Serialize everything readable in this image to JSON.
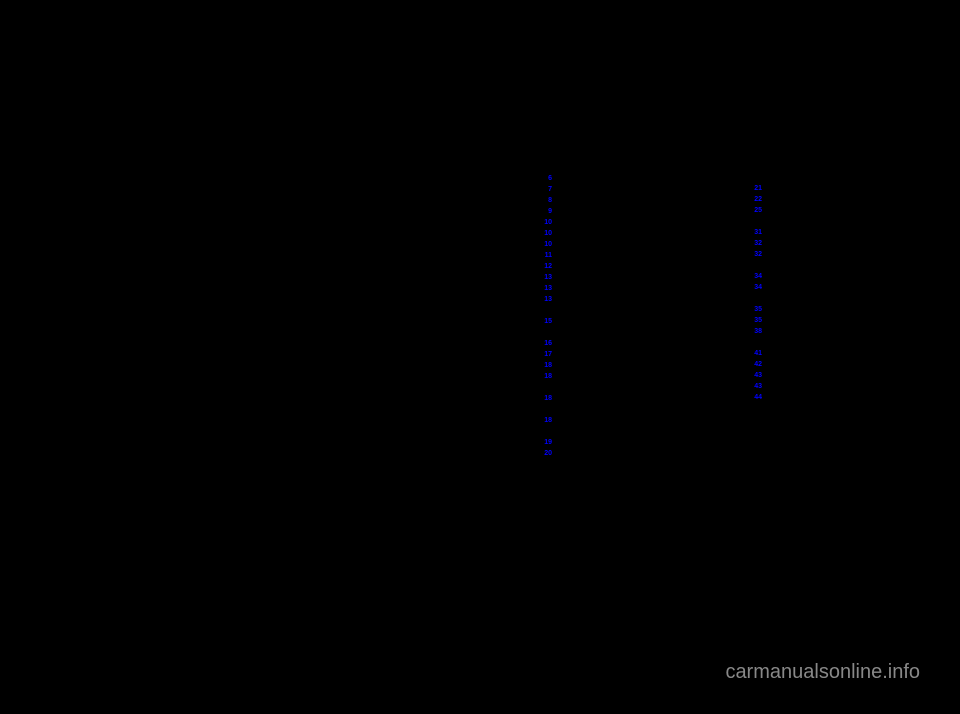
{
  "watermark": "carmanualsonline.info",
  "col1": [
    {
      "page": "6",
      "spaced": false
    },
    {
      "page": "7",
      "spaced": false
    },
    {
      "page": "8",
      "spaced": false
    },
    {
      "page": "9",
      "spaced": false
    },
    {
      "page": "10",
      "spaced": false
    },
    {
      "page": "10",
      "spaced": false
    },
    {
      "page": "10",
      "spaced": false
    },
    {
      "page": "11",
      "spaced": false
    },
    {
      "page": "12",
      "spaced": false
    },
    {
      "page": "13",
      "spaced": false
    },
    {
      "page": "13",
      "spaced": false
    },
    {
      "page": "13",
      "spaced": false
    },
    {
      "page": "15",
      "spaced": true
    },
    {
      "page": "16",
      "spaced": true
    },
    {
      "page": "17",
      "spaced": false
    },
    {
      "page": "18",
      "spaced": false
    },
    {
      "page": "18",
      "spaced": false
    },
    {
      "page": "18",
      "spaced": true
    },
    {
      "page": "18",
      "spaced": true
    },
    {
      "page": "19",
      "spaced": true
    },
    {
      "page": "20",
      "spaced": false
    }
  ],
  "col2": [
    {
      "page": "21",
      "spaced": false
    },
    {
      "page": "22",
      "spaced": false
    },
    {
      "page": "25",
      "spaced": false
    },
    {
      "page": "31",
      "spaced": true
    },
    {
      "page": "32",
      "spaced": false
    },
    {
      "page": "32",
      "spaced": false
    },
    {
      "page": "34",
      "spaced": true
    },
    {
      "page": "34",
      "spaced": false
    },
    {
      "page": "35",
      "spaced": true
    },
    {
      "page": "35",
      "spaced": false
    },
    {
      "page": "38",
      "spaced": false
    },
    {
      "page": "41",
      "spaced": true
    },
    {
      "page": "42",
      "spaced": false
    },
    {
      "page": "43",
      "spaced": false
    },
    {
      "page": "43",
      "spaced": false
    },
    {
      "page": "44",
      "spaced": false
    }
  ]
}
